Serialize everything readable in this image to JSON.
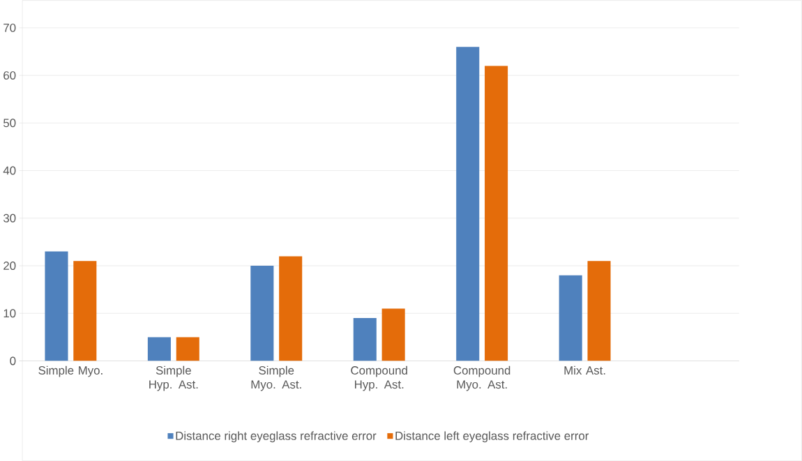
{
  "chart_data": {
    "type": "bar",
    "categories": [
      "Simple Myo.",
      "Simple Hyp. Ast.",
      "Simple Myo. Ast.",
      "Compound Hyp. Ast.",
      "Compound Myo. Ast.",
      "Mix Ast.",
      null
    ],
    "series": [
      {
        "name": "Distance right eyeglass refractive error",
        "color": "#4f81bd",
        "values": [
          23,
          5,
          20,
          9,
          66,
          18,
          null
        ]
      },
      {
        "name": "Distance left eyeglass refractive error",
        "color": "#e46c0a",
        "values": [
          21,
          5,
          22,
          11,
          62,
          21,
          null
        ]
      }
    ],
    "ylim": [
      0,
      70
    ],
    "yticks": [
      0,
      10,
      20,
      30,
      40,
      50,
      60,
      70
    ],
    "grid": "y",
    "legend": "bottom"
  }
}
